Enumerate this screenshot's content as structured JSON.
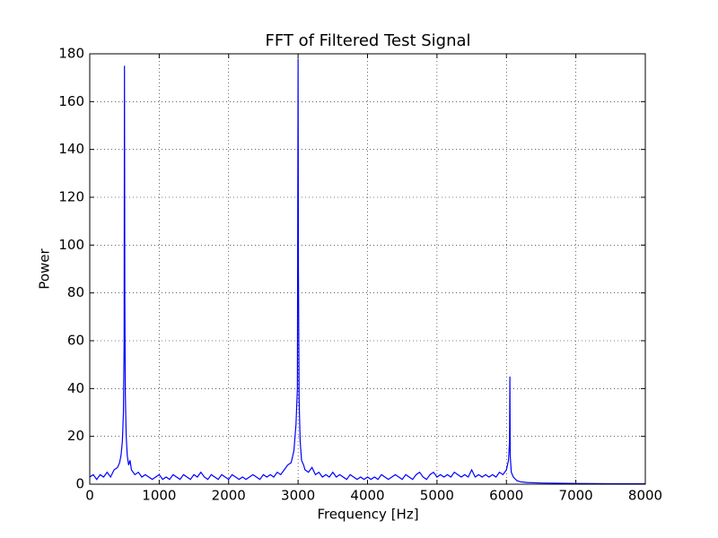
{
  "chart_data": {
    "type": "line",
    "title": "FFT of Filtered Test Signal",
    "x_label": "Frequency [Hz]",
    "y_label": "Power",
    "x": [
      0,
      50,
      100,
      150,
      200,
      250,
      300,
      350,
      400,
      430,
      450,
      470,
      485,
      495,
      500,
      505,
      512,
      525,
      540,
      560,
      580,
      600,
      650,
      700,
      750,
      800,
      850,
      900,
      950,
      1000,
      1050,
      1100,
      1150,
      1200,
      1250,
      1300,
      1350,
      1400,
      1450,
      1500,
      1550,
      1600,
      1650,
      1700,
      1750,
      1800,
      1850,
      1900,
      1950,
      2000,
      2050,
      2100,
      2150,
      2200,
      2250,
      2300,
      2350,
      2400,
      2450,
      2500,
      2550,
      2600,
      2650,
      2700,
      2750,
      2800,
      2850,
      2900,
      2940,
      2970,
      2990,
      3000,
      3005,
      3015,
      3030,
      3050,
      3080,
      3100,
      3150,
      3200,
      3250,
      3300,
      3350,
      3400,
      3450,
      3500,
      3550,
      3600,
      3650,
      3700,
      3750,
      3800,
      3850,
      3900,
      3950,
      4000,
      4050,
      4100,
      4150,
      4200,
      4250,
      4300,
      4350,
      4400,
      4450,
      4500,
      4550,
      4600,
      4650,
      4700,
      4750,
      4800,
      4850,
      4900,
      4950,
      5000,
      5050,
      5100,
      5150,
      5200,
      5250,
      5300,
      5350,
      5400,
      5450,
      5500,
      5550,
      5600,
      5650,
      5700,
      5750,
      5800,
      5850,
      5900,
      5950,
      6000,
      6030,
      6045,
      6050,
      6055,
      6070,
      6100,
      6150,
      6200,
      6300,
      6500,
      7000,
      7500,
      8000
    ],
    "values": [
      3,
      4,
      2,
      4,
      3,
      5,
      3,
      6,
      7,
      9,
      12,
      18,
      30,
      60,
      175,
      80,
      38,
      20,
      12,
      8,
      10,
      6,
      4,
      5,
      3,
      4,
      3,
      2,
      3,
      4,
      2,
      3,
      2,
      4,
      3,
      2,
      4,
      3,
      2,
      4,
      3,
      5,
      3,
      2,
      4,
      3,
      2,
      4,
      3,
      2,
      4,
      3,
      2,
      3,
      2,
      3,
      4,
      3,
      2,
      4,
      3,
      4,
      3,
      5,
      4,
      6,
      8,
      9,
      14,
      25,
      40,
      178,
      90,
      35,
      18,
      10,
      8,
      6,
      5,
      7,
      4,
      5,
      3,
      4,
      3,
      5,
      3,
      4,
      3,
      2,
      4,
      3,
      2,
      3,
      2,
      3,
      2,
      3,
      2,
      4,
      3,
      2,
      3,
      4,
      3,
      2,
      4,
      3,
      2,
      4,
      5,
      3,
      2,
      4,
      5,
      3,
      4,
      3,
      4,
      3,
      5,
      4,
      3,
      4,
      3,
      6,
      3,
      4,
      3,
      4,
      3,
      4,
      3,
      5,
      4,
      6,
      10,
      18,
      45,
      12,
      5,
      3,
      1.5,
      1,
      0.7,
      0.5,
      0.3,
      0.2,
      0.2
    ],
    "color": "#0000ff",
    "xlim": [
      0,
      8000
    ],
    "xticks": [
      0,
      1000,
      2000,
      3000,
      4000,
      5000,
      6000,
      7000,
      8000
    ],
    "ylim": [
      0,
      180
    ],
    "yticks": [
      0,
      20,
      40,
      60,
      80,
      100,
      120,
      140,
      160,
      180
    ],
    "grid": true
  }
}
